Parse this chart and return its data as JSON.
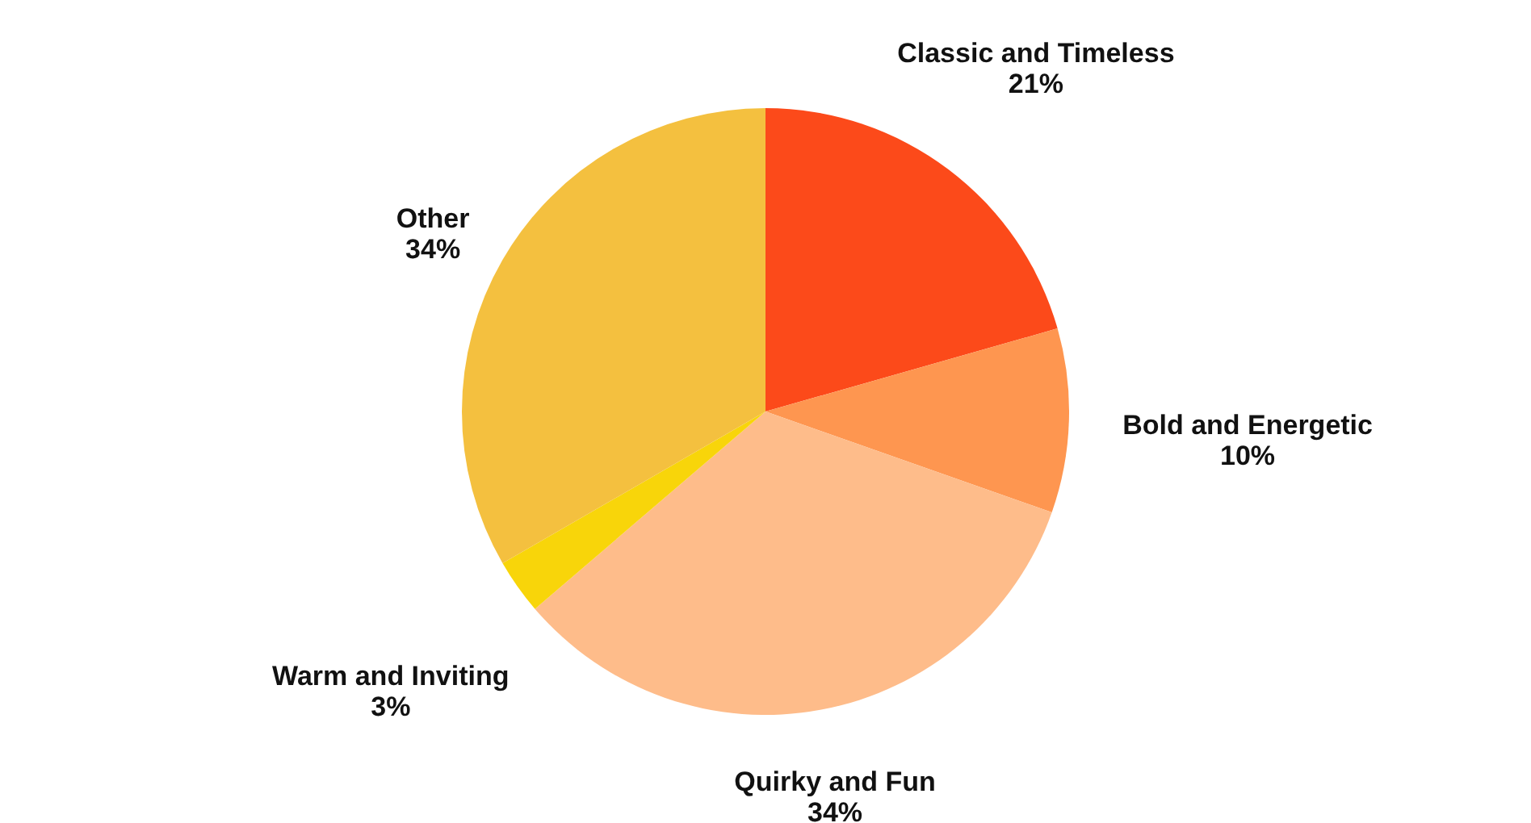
{
  "chart_data": {
    "type": "pie",
    "categories": [
      "Classic and Timeless",
      "Bold and Energetic",
      "Quirky and Fun",
      "Warm and Inviting",
      "Other"
    ],
    "values": [
      21,
      10,
      34,
      3,
      34
    ],
    "value_labels": [
      "21%",
      "10%",
      "34%",
      "3%",
      "34%"
    ],
    "colors": [
      "#fc4a1a",
      "#fe9650",
      "#febc8a",
      "#f8d50a",
      "#f4c03f"
    ]
  }
}
